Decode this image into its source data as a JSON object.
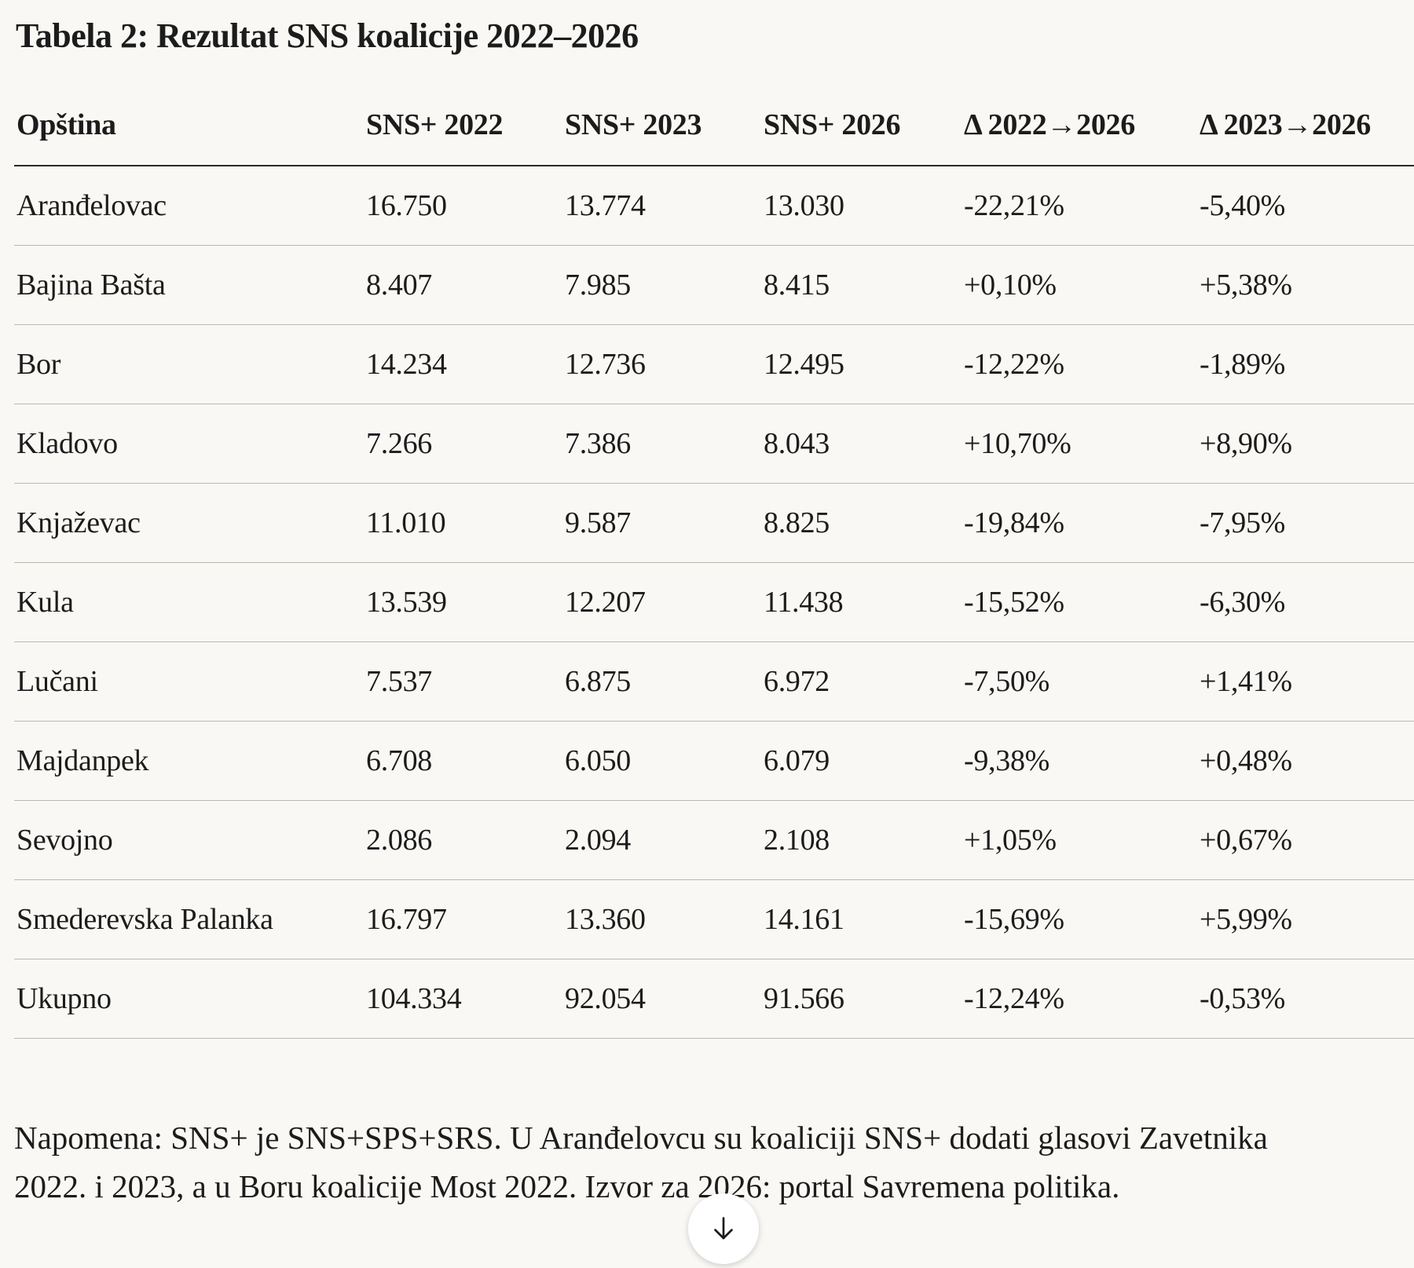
{
  "title": "Tabela 2: Rezultat SNS koalicije 2022–2026",
  "table": {
    "headers": [
      "Opština",
      "SNS+ 2022",
      "SNS+ 2023",
      "SNS+ 2026",
      "Δ 2022→2026",
      "Δ 2023→2026"
    ],
    "rows": [
      [
        "Aranđelovac",
        "16.750",
        "13.774",
        "13.030",
        "-22,21%",
        "-5,40%"
      ],
      [
        "Bajina Bašta",
        "8.407",
        "7.985",
        "8.415",
        "+0,10%",
        "+5,38%"
      ],
      [
        "Bor",
        "14.234",
        "12.736",
        "12.495",
        "-12,22%",
        "-1,89%"
      ],
      [
        "Kladovo",
        "7.266",
        "7.386",
        "8.043",
        "+10,70%",
        "+8,90%"
      ],
      [
        "Knjaževac",
        "11.010",
        "9.587",
        "8.825",
        "-19,84%",
        "-7,95%"
      ],
      [
        "Kula",
        "13.539",
        "12.207",
        "11.438",
        "-15,52%",
        "-6,30%"
      ],
      [
        "Lučani",
        "7.537",
        "6.875",
        "6.972",
        "-7,50%",
        "+1,41%"
      ],
      [
        "Majdanpek",
        "6.708",
        "6.050",
        "6.079",
        "-9,38%",
        "+0,48%"
      ],
      [
        "Sevojno",
        "2.086",
        "2.094",
        "2.108",
        "+1,05%",
        "+0,67%"
      ],
      [
        "Smederevska Palanka",
        "16.797",
        "13.360",
        "14.161",
        "-15,69%",
        "+5,99%"
      ],
      [
        "Ukupno",
        "104.334",
        "92.054",
        "91.566",
        "-12,24%",
        "-0,53%"
      ]
    ]
  },
  "note": "Napomena: SNS+ je SNS+SPS+SRS. U Aranđelovcu su koaliciji SNS+ dodati glasovi Zavetnika 2022. i 2023, a u Boru koalicije Most 2022. Izvor za 2026: portal Savremena politika.",
  "scroll_button": {
    "icon": "arrow-down-icon"
  }
}
